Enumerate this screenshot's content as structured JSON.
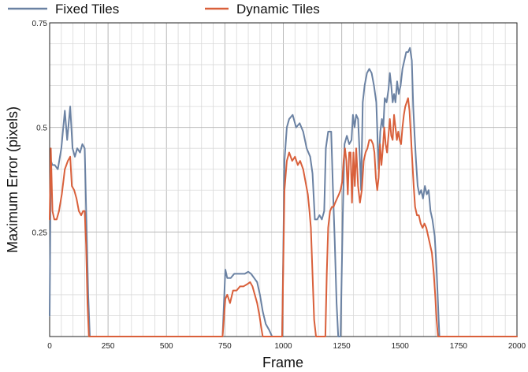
{
  "chart_data": {
    "type": "line",
    "xlabel": "Frame",
    "ylabel": "Maximum Error (pixels)",
    "xlim": [
      0,
      2000
    ],
    "ylim": [
      0,
      0.75
    ],
    "xticks": [
      0,
      250,
      500,
      750,
      1000,
      1250,
      1500,
      1750,
      2000
    ],
    "xtick_labels": [
      "0",
      "250",
      "500",
      "750",
      "1000",
      "1250",
      "1500",
      "1750",
      "2000"
    ],
    "yticks": [
      0.25,
      0.5,
      0.75
    ],
    "ytick_labels": [
      "0.25",
      "0.5",
      "0.75"
    ],
    "grid": true,
    "legend_position": "top",
    "series": [
      {
        "name": "Fixed Tiles",
        "color": "#6b82a3",
        "points": [
          [
            0,
            0.05
          ],
          [
            5,
            0.42
          ],
          [
            12,
            0.41
          ],
          [
            22,
            0.41
          ],
          [
            35,
            0.4
          ],
          [
            50,
            0.45
          ],
          [
            65,
            0.54
          ],
          [
            75,
            0.47
          ],
          [
            88,
            0.55
          ],
          [
            98,
            0.45
          ],
          [
            108,
            0.43
          ],
          [
            118,
            0.45
          ],
          [
            130,
            0.44
          ],
          [
            140,
            0.46
          ],
          [
            150,
            0.45
          ],
          [
            158,
            0.26
          ],
          [
            165,
            0.1
          ],
          [
            172,
            0.0
          ],
          [
            180,
            0.0
          ],
          [
            740,
            0.0
          ],
          [
            752,
            0.16
          ],
          [
            760,
            0.14
          ],
          [
            775,
            0.14
          ],
          [
            790,
            0.15
          ],
          [
            805,
            0.15
          ],
          [
            820,
            0.15
          ],
          [
            835,
            0.15
          ],
          [
            850,
            0.155
          ],
          [
            862,
            0.15
          ],
          [
            875,
            0.14
          ],
          [
            888,
            0.13
          ],
          [
            900,
            0.1
          ],
          [
            912,
            0.06
          ],
          [
            925,
            0.03
          ],
          [
            940,
            0.015
          ],
          [
            952,
            0.0
          ],
          [
            995,
            0.0
          ],
          [
            1005,
            0.42
          ],
          [
            1015,
            0.5
          ],
          [
            1025,
            0.52
          ],
          [
            1040,
            0.53
          ],
          [
            1055,
            0.5
          ],
          [
            1070,
            0.51
          ],
          [
            1085,
            0.49
          ],
          [
            1100,
            0.45
          ],
          [
            1115,
            0.43
          ],
          [
            1125,
            0.39
          ],
          [
            1135,
            0.28
          ],
          [
            1145,
            0.28
          ],
          [
            1155,
            0.29
          ],
          [
            1165,
            0.28
          ],
          [
            1175,
            0.3
          ],
          [
            1182,
            0.45
          ],
          [
            1192,
            0.49
          ],
          [
            1205,
            0.49
          ],
          [
            1212,
            0.36
          ],
          [
            1220,
            0.23
          ],
          [
            1228,
            0.08
          ],
          [
            1235,
            0.0
          ],
          [
            1245,
            0.0
          ],
          [
            1255,
            0.3
          ],
          [
            1262,
            0.46
          ],
          [
            1272,
            0.48
          ],
          [
            1282,
            0.46
          ],
          [
            1292,
            0.47
          ],
          [
            1298,
            0.53
          ],
          [
            1305,
            0.5
          ],
          [
            1312,
            0.53
          ],
          [
            1320,
            0.52
          ],
          [
            1328,
            0.42
          ],
          [
            1333,
            0.35
          ],
          [
            1340,
            0.56
          ],
          [
            1348,
            0.6
          ],
          [
            1358,
            0.63
          ],
          [
            1368,
            0.64
          ],
          [
            1378,
            0.63
          ],
          [
            1388,
            0.6
          ],
          [
            1398,
            0.56
          ],
          [
            1408,
            0.4
          ],
          [
            1415,
            0.49
          ],
          [
            1422,
            0.52
          ],
          [
            1428,
            0.5
          ],
          [
            1434,
            0.57
          ],
          [
            1442,
            0.56
          ],
          [
            1450,
            0.59
          ],
          [
            1456,
            0.63
          ],
          [
            1462,
            0.6
          ],
          [
            1468,
            0.56
          ],
          [
            1474,
            0.58
          ],
          [
            1480,
            0.56
          ],
          [
            1487,
            0.61
          ],
          [
            1494,
            0.58
          ],
          [
            1502,
            0.6
          ],
          [
            1510,
            0.64
          ],
          [
            1518,
            0.66
          ],
          [
            1526,
            0.68
          ],
          [
            1534,
            0.68
          ],
          [
            1542,
            0.69
          ],
          [
            1550,
            0.66
          ],
          [
            1556,
            0.55
          ],
          [
            1562,
            0.48
          ],
          [
            1568,
            0.42
          ],
          [
            1575,
            0.36
          ],
          [
            1582,
            0.34
          ],
          [
            1590,
            0.35
          ],
          [
            1598,
            0.33
          ],
          [
            1606,
            0.36
          ],
          [
            1614,
            0.34
          ],
          [
            1622,
            0.35
          ],
          [
            1630,
            0.3
          ],
          [
            1638,
            0.28
          ],
          [
            1648,
            0.24
          ],
          [
            1656,
            0.16
          ],
          [
            1662,
            0.08
          ],
          [
            1668,
            0.0
          ],
          [
            2000,
            0.0
          ]
        ]
      },
      {
        "name": "Dynamic Tiles",
        "color": "#d9603b",
        "points": [
          [
            0,
            0.28
          ],
          [
            5,
            0.45
          ],
          [
            12,
            0.3
          ],
          [
            20,
            0.28
          ],
          [
            30,
            0.28
          ],
          [
            40,
            0.3
          ],
          [
            52,
            0.34
          ],
          [
            65,
            0.4
          ],
          [
            78,
            0.42
          ],
          [
            88,
            0.43
          ],
          [
            95,
            0.36
          ],
          [
            105,
            0.35
          ],
          [
            115,
            0.33
          ],
          [
            125,
            0.3
          ],
          [
            135,
            0.29
          ],
          [
            143,
            0.3
          ],
          [
            150,
            0.3
          ],
          [
            156,
            0.22
          ],
          [
            162,
            0.08
          ],
          [
            168,
            0.0
          ],
          [
            176,
            0.0
          ],
          [
            740,
            0.0
          ],
          [
            752,
            0.09
          ],
          [
            760,
            0.1
          ],
          [
            772,
            0.08
          ],
          [
            785,
            0.11
          ],
          [
            800,
            0.11
          ],
          [
            815,
            0.12
          ],
          [
            830,
            0.12
          ],
          [
            845,
            0.125
          ],
          [
            858,
            0.13
          ],
          [
            868,
            0.12
          ],
          [
            878,
            0.1
          ],
          [
            888,
            0.08
          ],
          [
            898,
            0.05
          ],
          [
            906,
            0.02
          ],
          [
            912,
            0.0
          ],
          [
            995,
            0.0
          ],
          [
            1005,
            0.35
          ],
          [
            1015,
            0.42
          ],
          [
            1025,
            0.44
          ],
          [
            1038,
            0.42
          ],
          [
            1050,
            0.43
          ],
          [
            1062,
            0.41
          ],
          [
            1072,
            0.42
          ],
          [
            1085,
            0.4
          ],
          [
            1095,
            0.37
          ],
          [
            1105,
            0.34
          ],
          [
            1112,
            0.3
          ],
          [
            1118,
            0.26
          ],
          [
            1125,
            0.15
          ],
          [
            1132,
            0.04
          ],
          [
            1140,
            0.0
          ],
          [
            1180,
            0.0
          ],
          [
            1186,
            0.15
          ],
          [
            1192,
            0.26
          ],
          [
            1200,
            0.3
          ],
          [
            1208,
            0.31
          ],
          [
            1215,
            0.31
          ],
          [
            1222,
            0.32
          ],
          [
            1230,
            0.33
          ],
          [
            1238,
            0.34
          ],
          [
            1245,
            0.35
          ],
          [
            1252,
            0.37
          ],
          [
            1258,
            0.42
          ],
          [
            1264,
            0.45
          ],
          [
            1270,
            0.42
          ],
          [
            1276,
            0.34
          ],
          [
            1282,
            0.44
          ],
          [
            1288,
            0.44
          ],
          [
            1294,
            0.32
          ],
          [
            1300,
            0.44
          ],
          [
            1306,
            0.36
          ],
          [
            1312,
            0.45
          ],
          [
            1320,
            0.36
          ],
          [
            1328,
            0.32
          ],
          [
            1336,
            0.35
          ],
          [
            1344,
            0.42
          ],
          [
            1352,
            0.44
          ],
          [
            1360,
            0.45
          ],
          [
            1368,
            0.47
          ],
          [
            1376,
            0.47
          ],
          [
            1384,
            0.46
          ],
          [
            1390,
            0.44
          ],
          [
            1396,
            0.38
          ],
          [
            1402,
            0.35
          ],
          [
            1408,
            0.38
          ],
          [
            1414,
            0.46
          ],
          [
            1420,
            0.41
          ],
          [
            1426,
            0.45
          ],
          [
            1432,
            0.5
          ],
          [
            1438,
            0.46
          ],
          [
            1444,
            0.44
          ],
          [
            1450,
            0.48
          ],
          [
            1456,
            0.52
          ],
          [
            1462,
            0.48
          ],
          [
            1468,
            0.47
          ],
          [
            1474,
            0.53
          ],
          [
            1480,
            0.5
          ],
          [
            1486,
            0.47
          ],
          [
            1492,
            0.49
          ],
          [
            1498,
            0.47
          ],
          [
            1504,
            0.46
          ],
          [
            1510,
            0.5
          ],
          [
            1516,
            0.53
          ],
          [
            1522,
            0.55
          ],
          [
            1528,
            0.56
          ],
          [
            1534,
            0.57
          ],
          [
            1540,
            0.54
          ],
          [
            1546,
            0.48
          ],
          [
            1552,
            0.42
          ],
          [
            1558,
            0.36
          ],
          [
            1564,
            0.31
          ],
          [
            1572,
            0.29
          ],
          [
            1580,
            0.29
          ],
          [
            1588,
            0.27
          ],
          [
            1596,
            0.26
          ],
          [
            1604,
            0.27
          ],
          [
            1612,
            0.26
          ],
          [
            1620,
            0.24
          ],
          [
            1628,
            0.22
          ],
          [
            1636,
            0.2
          ],
          [
            1644,
            0.15
          ],
          [
            1650,
            0.1
          ],
          [
            1656,
            0.04
          ],
          [
            1662,
            0.0
          ],
          [
            2000,
            0.0
          ]
        ]
      }
    ]
  }
}
